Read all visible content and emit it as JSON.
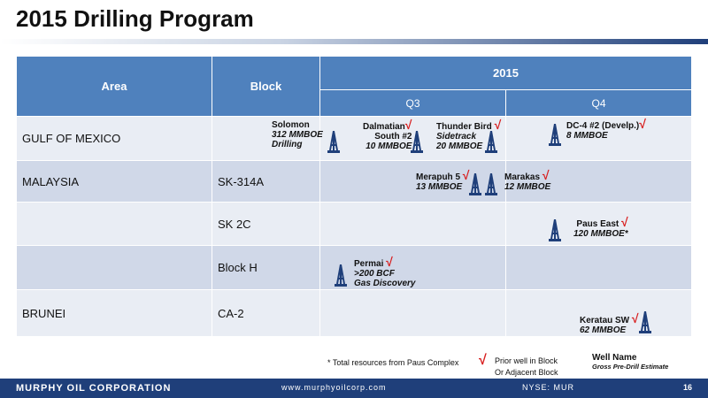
{
  "title": "2015 Drilling Program",
  "table": {
    "col_area": "Area",
    "col_block": "Block",
    "year": "2015",
    "q3": "Q3",
    "q4": "Q4",
    "rows": [
      {
        "area": "GULF OF MEXICO",
        "block": ""
      },
      {
        "area": "MALAYSIA",
        "block": "SK-314A"
      },
      {
        "area": "",
        "block": "SK 2C"
      },
      {
        "area": "",
        "block": "Block H"
      },
      {
        "area": "BRUNEI",
        "block": "CA-2"
      }
    ]
  },
  "wells": {
    "solomon": {
      "name": "Solomon",
      "l2": "312 MMBOE",
      "l3": "Drilling"
    },
    "dalmatian": {
      "name": "Dalmatian",
      "l2": "South #2",
      "l3": "10 MMBOE"
    },
    "thunderbird": {
      "name": "Thunder Bird",
      "l2": "Sidetrack",
      "l3": "20 MMBOE"
    },
    "dc4": {
      "name": "DC-4 #2 (Develp.)",
      "l2": "8 MMBOE"
    },
    "merapuh": {
      "name": "Merapuh 5",
      "l2": "13 MMBOE"
    },
    "marakas": {
      "name": "Marakas",
      "l2": "12 MMBOE"
    },
    "pauseast": {
      "name": "Paus East",
      "l2": "120 MMBOE*"
    },
    "permai": {
      "name": "Permai",
      "l2": ">200 BCF",
      "l3": "Gas Discovery"
    },
    "keratau": {
      "name": "Keratau SW",
      "l2": "62 MMBOE"
    }
  },
  "check_symbol": "√",
  "notes": {
    "total_resources": "* Total resources from Paus Complex",
    "legend_prior": "Prior well in Block",
    "legend_adjacent": "Or Adjacent Block",
    "legend_well_name": "Well Name",
    "legend_gross": "Gross Pre-Drill Estimate"
  },
  "footer": {
    "corp": "MURPHY OIL CORPORATION",
    "web": "www.murphyoilcorp.com",
    "nyse": "NYSE: MUR",
    "page": "16"
  },
  "colors": {
    "header_blue": "#4f81bd",
    "row_dark": "#d0d8e8",
    "row_light": "#e9edf4",
    "footer_navy": "#1f3f7a",
    "check_red": "#d81e1e",
    "rig_navy": "#1f3f7a"
  },
  "icons": {
    "rig": "drilling-rig-icon",
    "check": "check-mark-icon"
  }
}
